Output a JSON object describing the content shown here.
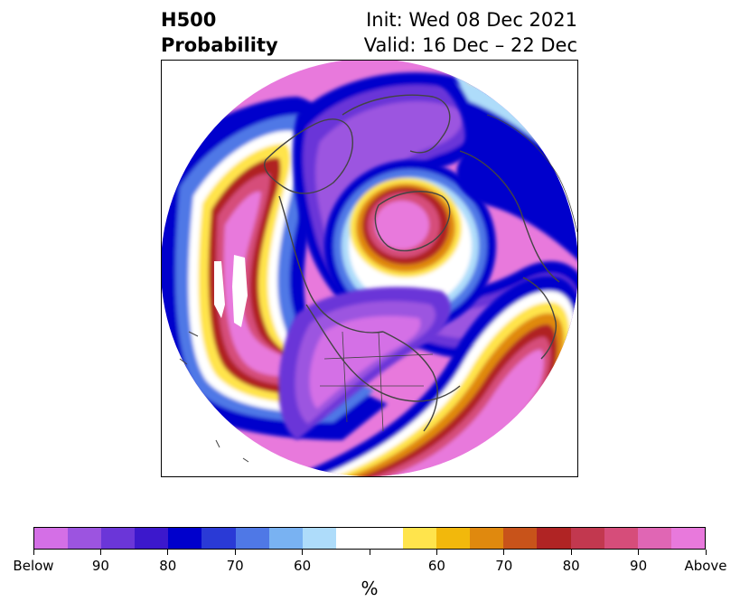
{
  "header": {
    "title_line1": "H500",
    "title_line2": "Probability",
    "init_text": "Init: Wed 08 Dec 2021",
    "valid_text": "Valid: 16 Dec – 22 Dec"
  },
  "colorbar": {
    "unit": "%",
    "colors": [
      "#d46fe6",
      "#9c54e0",
      "#6b36d8",
      "#3c18cc",
      "#0000cc",
      "#2a3ad6",
      "#4f78e6",
      "#79b2f2",
      "#aedcfa",
      "#ffffff",
      "#ffffff",
      "#ffe44c",
      "#f2b80c",
      "#e0890e",
      "#c8531a",
      "#b02424",
      "#c2384f",
      "#d64d7a",
      "#e066b4",
      "#e879dc"
    ],
    "tick_labels": [
      "Below",
      "90",
      "80",
      "70",
      "60",
      "",
      "60",
      "70",
      "80",
      "90",
      "Above"
    ]
  },
  "map": {
    "projection": "north-polar-stereographic",
    "colors": {
      "above_core": "#e879dc",
      "above_mid": "#d64d7a",
      "above_low": "#b02424",
      "orange": "#e0890e",
      "yellow": "#ffe44c",
      "white": "#ffffff",
      "light_blue": "#aedcfa",
      "mid_blue": "#4f78e6",
      "blue": "#0000cc",
      "indigo": "#6b36d8",
      "below_core": "#9c54e0",
      "coast": "#444444"
    }
  }
}
